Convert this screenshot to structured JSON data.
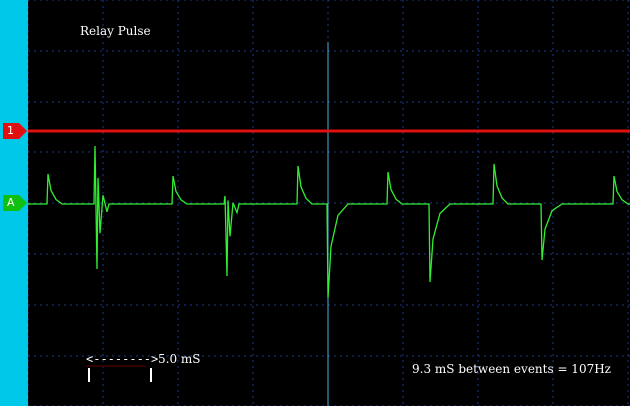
{
  "scope": {
    "title": "Relay Pulse",
    "info": "9.3 mS between events = 107Hz",
    "scale": {
      "arrow": "<-------->",
      "value": "5.0 mS"
    },
    "markers": {
      "ref": "1",
      "channel": "A"
    },
    "colors": {
      "background": "#000000",
      "left_strip": "#00c8e8",
      "grid": "#1a3a8a",
      "reference_line": "#e01010",
      "trace": "#33ee33",
      "cursor": "#4ab0e0"
    }
  }
}
